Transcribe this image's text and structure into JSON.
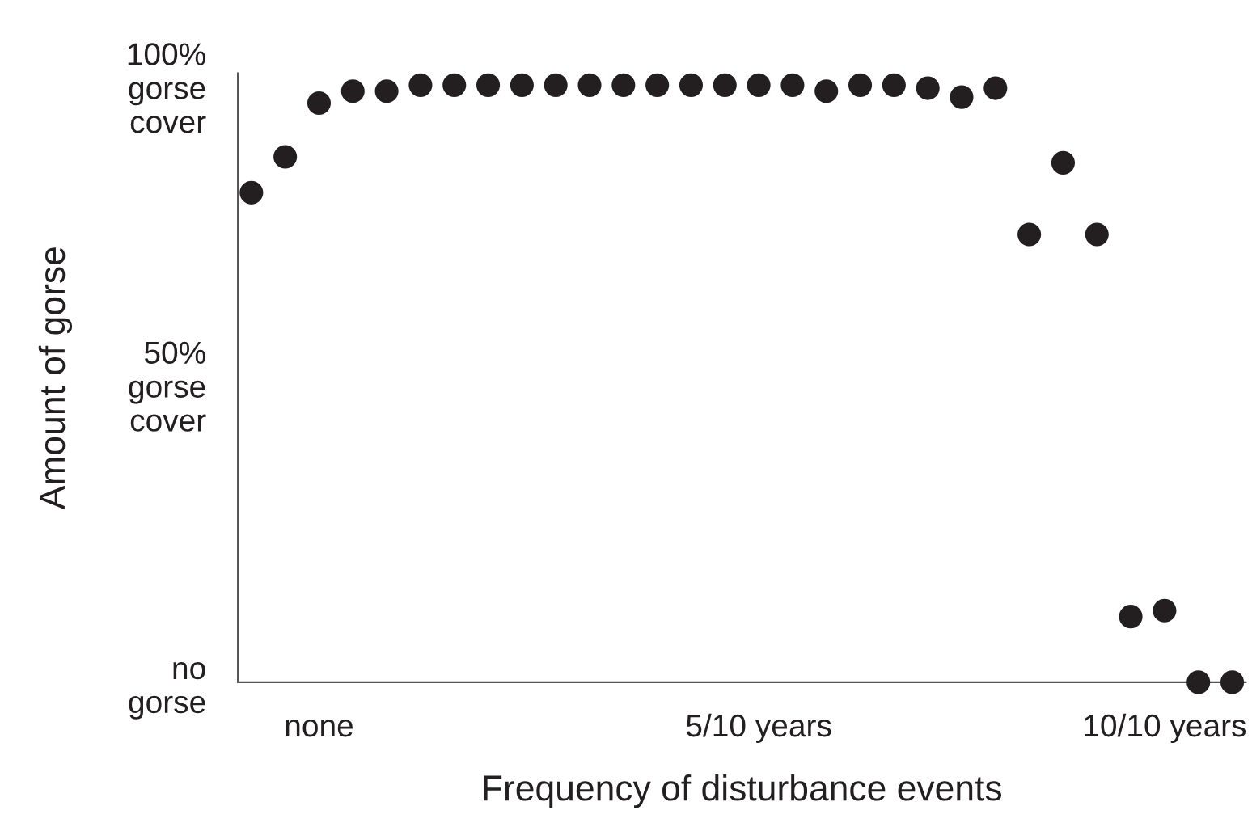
{
  "chart_data": {
    "type": "scatter",
    "xlabel": "Frequency of disturbance events",
    "ylabel": "Amount of gorse",
    "categories": [
      null,
      null,
      "none",
      null,
      null,
      null,
      null,
      null,
      null,
      null,
      null,
      null,
      null,
      null,
      null,
      "5/10 years",
      null,
      null,
      null,
      null,
      null,
      null,
      null,
      null,
      null,
      null,
      null,
      "10/10 years",
      null,
      null
    ],
    "series": [
      {
        "color": "#231f20",
        "values": [
          82,
          88,
          97,
          99,
          99,
          100,
          100,
          100,
          100,
          100,
          100,
          100,
          100,
          100,
          100,
          100,
          100,
          99,
          100,
          100,
          99.5,
          98,
          99.5,
          75,
          87,
          75,
          11,
          12,
          0,
          0
        ]
      }
    ],
    "marker": "circle",
    "ylim": [
      0,
      102
    ],
    "yticks": [
      {
        "value": 0,
        "label": "no\ngorse"
      },
      {
        "value": 50,
        "label": "50%\ngorse\ncover"
      },
      {
        "value": 100,
        "label": "100%\ngorse\ncover"
      }
    ],
    "grid": false,
    "legend": false
  }
}
